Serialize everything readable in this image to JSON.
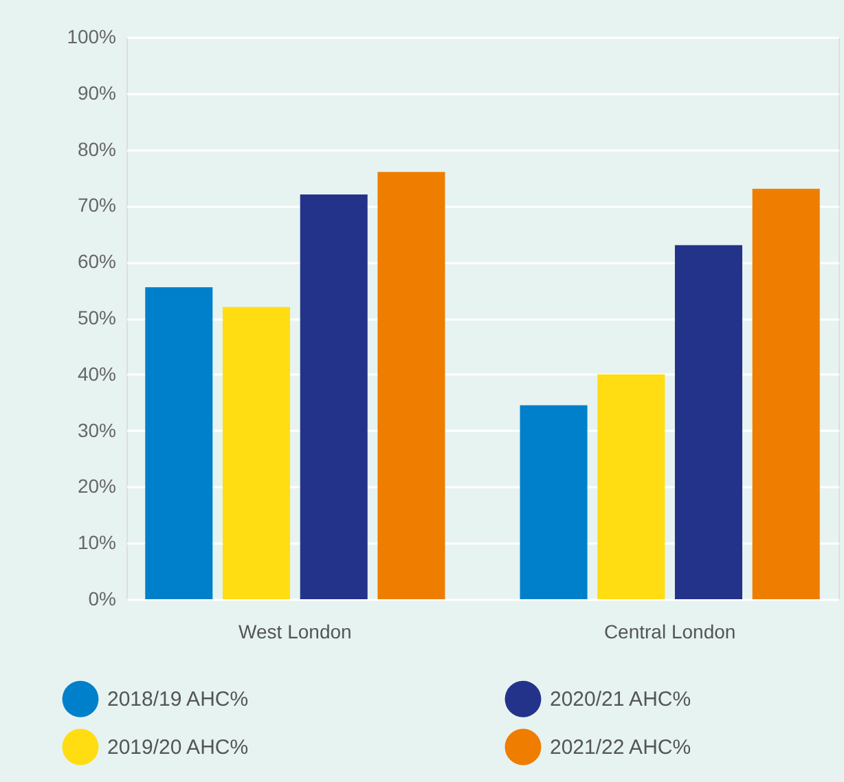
{
  "chart_data": {
    "type": "bar",
    "categories": [
      "West London",
      "Central London"
    ],
    "series": [
      {
        "name": "2018/19 AHC%",
        "color": "#0080cb",
        "values": [
          55.5,
          34.5
        ]
      },
      {
        "name": "2019/20 AHC%",
        "color": "#ffdd12",
        "values": [
          52,
          40
        ]
      },
      {
        "name": "2020/21 AHC%",
        "color": "#24338a",
        "values": [
          72,
          63
        ]
      },
      {
        "name": "2021/22 AHC%",
        "color": "#ef7d00",
        "values": [
          76,
          73
        ]
      }
    ],
    "ylim": [
      0,
      100
    ],
    "yticks": [
      {
        "value": 0,
        "label": "0%"
      },
      {
        "value": 10,
        "label": "10%"
      },
      {
        "value": 20,
        "label": "20%"
      },
      {
        "value": 30,
        "label": "30%"
      },
      {
        "value": 40,
        "label": "40%"
      },
      {
        "value": 50,
        "label": "50%"
      },
      {
        "value": 60,
        "label": "60%"
      },
      {
        "value": 70,
        "label": "70%"
      },
      {
        "value": 80,
        "label": "80%"
      },
      {
        "value": 90,
        "label": "90%"
      },
      {
        "value": 100,
        "label": "100%"
      }
    ],
    "grid": "y",
    "legend": "bottom"
  }
}
